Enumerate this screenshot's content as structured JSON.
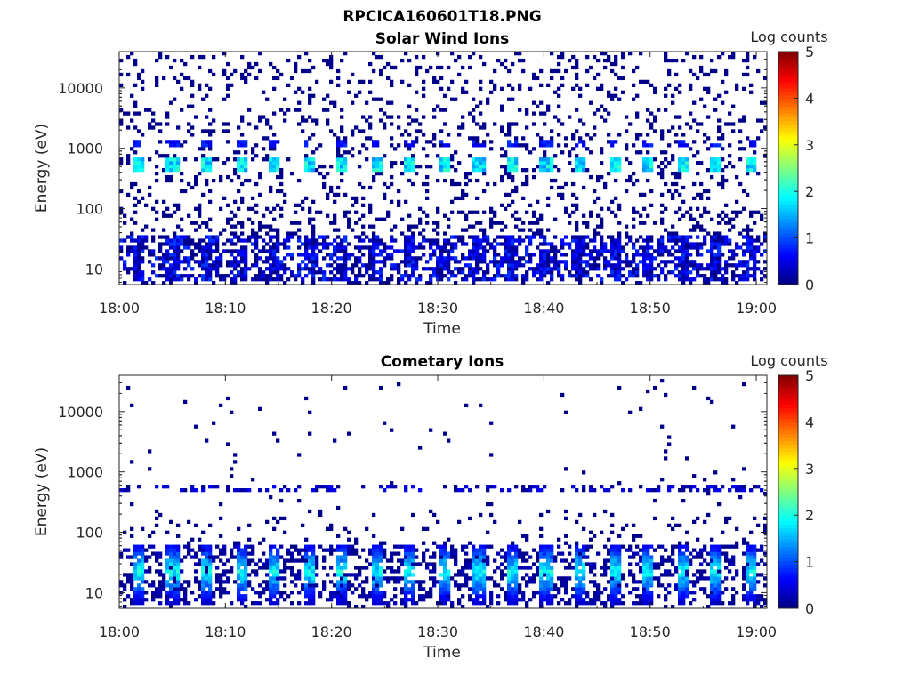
{
  "figure_title": "RPCICA160601T18.PNG",
  "chart_data": [
    {
      "type": "heatmap",
      "title": "Solar Wind Ions",
      "xlabel": "Time",
      "ylabel": "Energy (eV)",
      "x_ticks": [
        "18:00",
        "18:10",
        "18:20",
        "18:30",
        "18:40",
        "18:50",
        "19:00"
      ],
      "x_range": [
        "18:00",
        "19:01"
      ],
      "y_ticks": [
        10,
        100,
        1000,
        10000
      ],
      "y_scale": "log",
      "y_range": [
        5.5,
        40000
      ],
      "colorbar": {
        "label": "Log counts",
        "ticks": [
          0,
          1,
          2,
          3,
          4,
          5
        ],
        "range": [
          0,
          5
        ],
        "colormap": "jet"
      },
      "features": {
        "proton_peak_energy_eV": 550,
        "proton_peak_log_counts": 2.2,
        "alpha_peak_energy_eV": 1250,
        "alpha_peak_log_counts": 0.8,
        "low_energy_band_eV": [
          6,
          35
        ],
        "low_energy_log_counts": 0.9,
        "sweep_period_min": 3.2,
        "background": "sparse single counts up to ~30000 eV"
      }
    },
    {
      "type": "heatmap",
      "title": "Cometary Ions",
      "xlabel": "Time",
      "ylabel": "Energy (eV)",
      "x_ticks": [
        "18:00",
        "18:10",
        "18:20",
        "18:30",
        "18:40",
        "18:50",
        "19:00"
      ],
      "x_range": [
        "18:00",
        "19:01"
      ],
      "y_ticks": [
        10,
        100,
        1000,
        10000
      ],
      "y_scale": "log",
      "y_range": [
        5.5,
        40000
      ],
      "colorbar": {
        "label": "Log counts",
        "ticks": [
          0,
          1,
          2,
          3,
          4,
          5
        ],
        "range": [
          0,
          5
        ],
        "colormap": "jet"
      },
      "features": {
        "low_energy_band_eV": [
          6,
          60
        ],
        "low_energy_peak_log_counts": 2.2,
        "secondary_band_energy_eV": 550,
        "secondary_band_log_counts": 0.6,
        "sweep_period_min": 3.2,
        "background": "sparse single counts up to ~30000 eV"
      }
    }
  ]
}
